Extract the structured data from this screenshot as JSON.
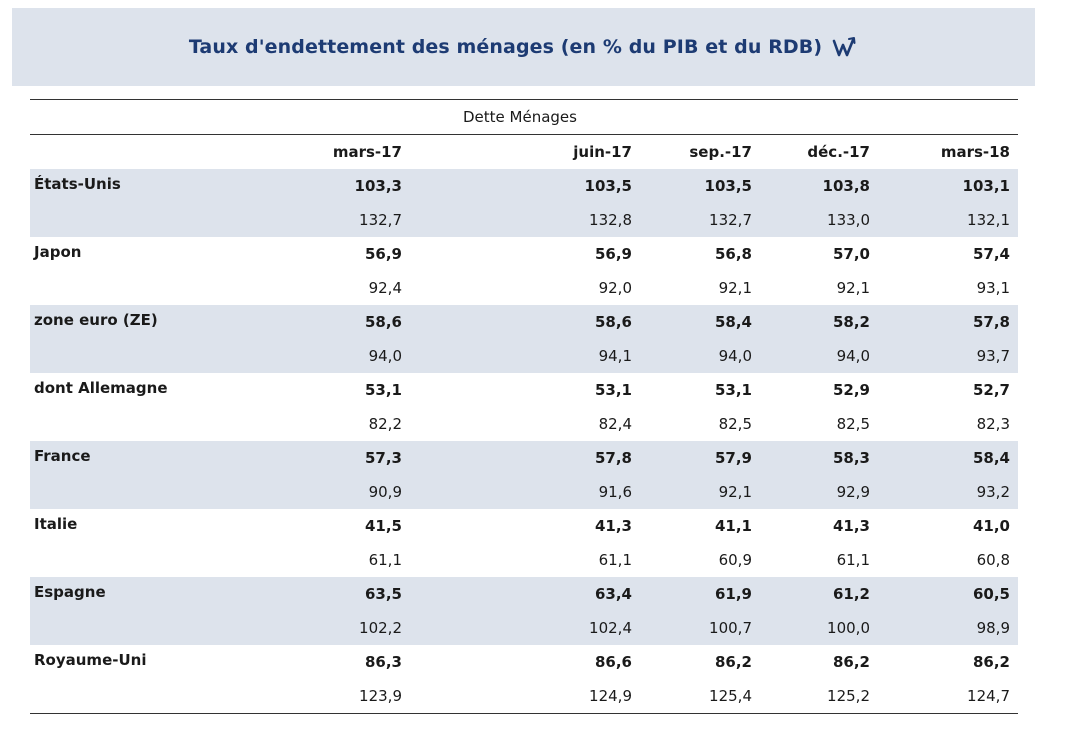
{
  "title": "Taux d'endettement des ménages (en % du PIB et du RDB)",
  "logo_icon": "w-arrow-logo-icon",
  "colors": {
    "title": "#1d3b73",
    "band": "#dde3ec",
    "rule": "#333333"
  },
  "table": {
    "super_header": "Dette Ménages",
    "columns": [
      "mars-17",
      "juin-17",
      "sep.-17",
      "déc.-17",
      "mars-18"
    ],
    "rows": [
      {
        "country": "États-Unis",
        "pib": [
          "103,3",
          "103,5",
          "103,5",
          "103,8",
          "103,1"
        ],
        "rdb": [
          "132,7",
          "132,8",
          "132,7",
          "133,0",
          "132,1"
        ]
      },
      {
        "country": "Japon",
        "pib": [
          "56,9",
          "56,9",
          "56,8",
          "57,0",
          "57,4"
        ],
        "rdb": [
          "92,4",
          "92,0",
          "92,1",
          "92,1",
          "93,1"
        ]
      },
      {
        "country": "zone euro (ZE)",
        "pib": [
          "58,6",
          "58,6",
          "58,4",
          "58,2",
          "57,8"
        ],
        "rdb": [
          "94,0",
          "94,1",
          "94,0",
          "94,0",
          "93,7"
        ]
      },
      {
        "country": "dont Allemagne",
        "pib": [
          "53,1",
          "53,1",
          "53,1",
          "52,9",
          "52,7"
        ],
        "rdb": [
          "82,2",
          "82,4",
          "82,5",
          "82,5",
          "82,3"
        ]
      },
      {
        "country": "France",
        "pib": [
          "57,3",
          "57,8",
          "57,9",
          "58,3",
          "58,4"
        ],
        "rdb": [
          "90,9",
          "91,6",
          "92,1",
          "92,9",
          "93,2"
        ]
      },
      {
        "country": "Italie",
        "pib": [
          "41,5",
          "41,3",
          "41,1",
          "41,3",
          "41,0"
        ],
        "rdb": [
          "61,1",
          "61,1",
          "60,9",
          "61,1",
          "60,8"
        ]
      },
      {
        "country": "Espagne",
        "pib": [
          "63,5",
          "63,4",
          "61,9",
          "61,2",
          "60,5"
        ],
        "rdb": [
          "102,2",
          "102,4",
          "100,7",
          "100,0",
          "98,9"
        ]
      },
      {
        "country": "Royaume-Uni",
        "pib": [
          "86,3",
          "86,6",
          "86,2",
          "86,2",
          "86,2"
        ],
        "rdb": [
          "123,9",
          "124,9",
          "125,4",
          "125,2",
          "124,7"
        ]
      }
    ]
  }
}
